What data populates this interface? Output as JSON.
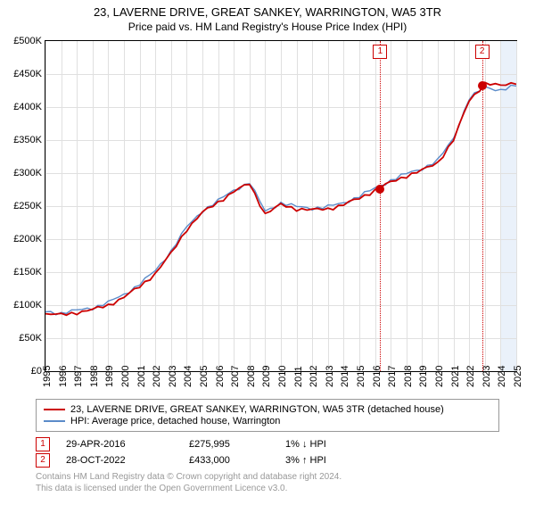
{
  "title": "23, LAVERNE DRIVE, GREAT SANKEY, WARRINGTON, WA5 3TR",
  "subtitle": "Price paid vs. HM Land Registry's House Price Index (HPI)",
  "chart": {
    "type": "line",
    "background_color": "#ffffff",
    "grid_color": "#e0e0e0",
    "border_color": "#000000",
    "shade_color": "#eaf1fa",
    "ylim": [
      0,
      500000
    ],
    "ytick_step": 50000,
    "y_labels": [
      "£0",
      "£50K",
      "£100K",
      "£150K",
      "£200K",
      "£250K",
      "£300K",
      "£350K",
      "£400K",
      "£450K",
      "£500K"
    ],
    "x_years": [
      1995,
      1996,
      1997,
      1998,
      1999,
      2000,
      2001,
      2002,
      2003,
      2004,
      2005,
      2006,
      2007,
      2008,
      2009,
      2010,
      2011,
      2012,
      2013,
      2014,
      2015,
      2016,
      2017,
      2018,
      2019,
      2020,
      2021,
      2022,
      2023,
      2024,
      2025
    ],
    "series": [
      {
        "name": "property",
        "label": "23, LAVERNE DRIVE, GREAT SANKEY, WARRINGTON, WA5 3TR (detached house)",
        "color": "#cc0000",
        "width": 1.8,
        "values": [
          87000,
          85000,
          89000,
          93000,
          100000,
          112000,
          128000,
          148000,
          178000,
          215000,
          240000,
          256000,
          272000,
          284000,
          238000,
          252000,
          246000,
          244000,
          246000,
          252000,
          262000,
          274000,
          286000,
          296000,
          304000,
          316000,
          350000,
          410000,
          436000,
          432000,
          438000
        ]
      },
      {
        "name": "hpi",
        "label": "HPI: Average price, detached house, Warrington",
        "color": "#5b8bc9",
        "width": 1.4,
        "values": [
          90000,
          88000,
          92000,
          96000,
          104000,
          116000,
          132000,
          152000,
          182000,
          218000,
          243000,
          258000,
          274000,
          286000,
          242000,
          255000,
          249000,
          247000,
          249000,
          255000,
          265000,
          277000,
          289000,
          299000,
          307000,
          319000,
          353000,
          413000,
          430000,
          426000,
          432000
        ]
      }
    ],
    "markers": [
      {
        "id": "1",
        "year": 2016.33,
        "value": 275995,
        "color": "#cc0000"
      },
      {
        "id": "2",
        "year": 2022.82,
        "value": 433000,
        "color": "#cc0000"
      }
    ],
    "shade_from_year": 2024.0
  },
  "legend": [
    {
      "color": "#cc0000",
      "text": "23, LAVERNE DRIVE, GREAT SANKEY, WARRINGTON, WA5 3TR (detached house)"
    },
    {
      "color": "#5b8bc9",
      "text": "HPI: Average price, detached house, Warrington"
    }
  ],
  "sales": [
    {
      "id": "1",
      "date": "29-APR-2016",
      "price": "£275,995",
      "delta": "1% ↓ HPI"
    },
    {
      "id": "2",
      "date": "28-OCT-2022",
      "price": "£433,000",
      "delta": "3% ↑ HPI"
    }
  ],
  "footer_line1": "Contains HM Land Registry data © Crown copyright and database right 2024.",
  "footer_line2": "This data is licensed under the Open Government Licence v3.0."
}
